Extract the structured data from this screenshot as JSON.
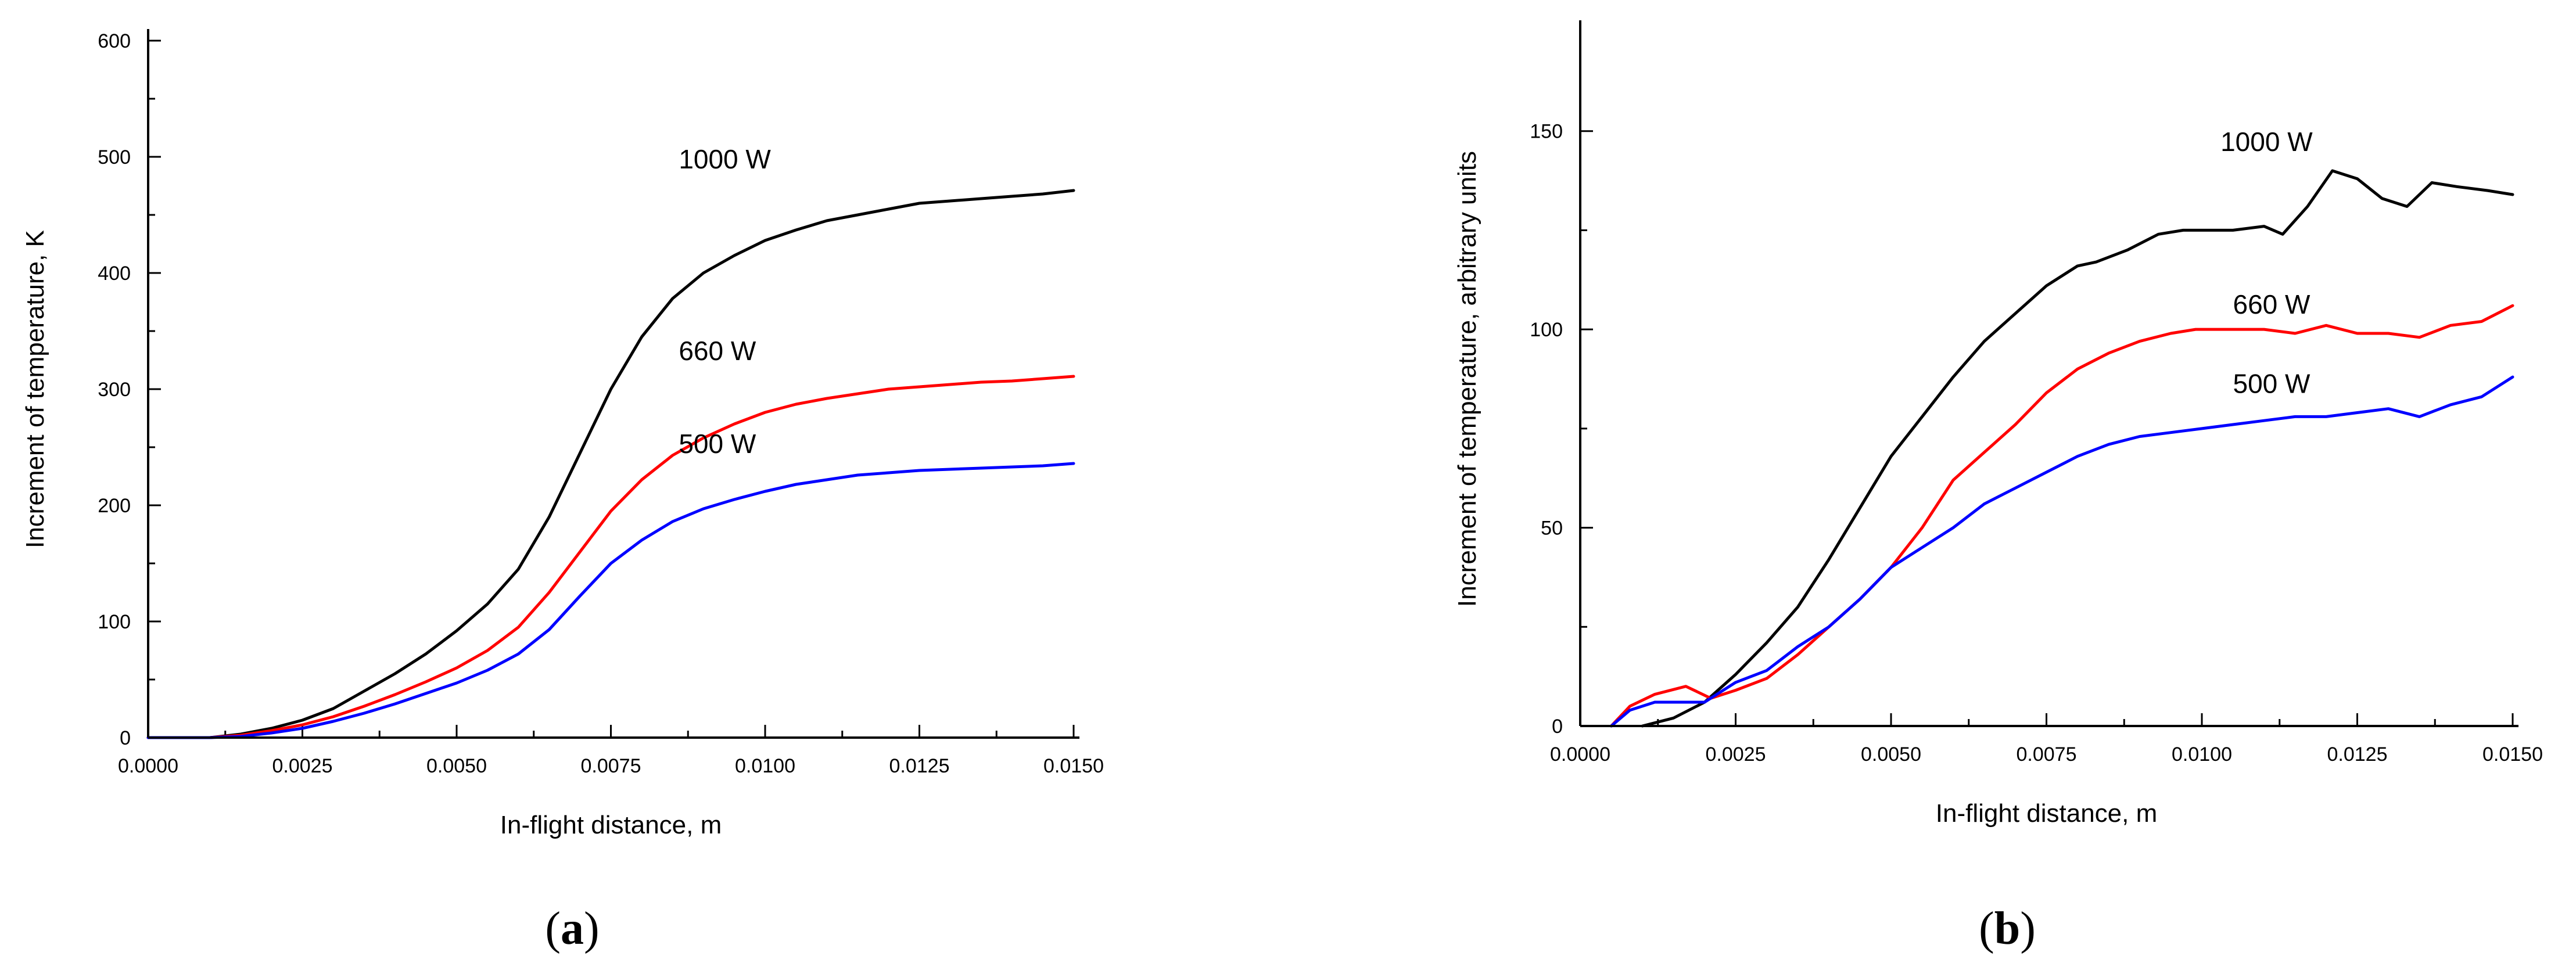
{
  "chart_data": [
    {
      "type": "line",
      "panel": "a",
      "caption_open": "(",
      "caption_letter": "a",
      "caption_close": ")",
      "xlabel": "In-flight distance, m",
      "ylabel": "Increment of temperature, K",
      "xlim": [
        0,
        0.015
      ],
      "ylim": [
        0,
        600
      ],
      "x_ticks": [
        0,
        0.0025,
        0.005,
        0.0075,
        0.01,
        0.0125,
        0.015
      ],
      "x_tick_labels": [
        "0.0000",
        "0.0025",
        "0.0050",
        "0.0075",
        "0.0100",
        "0.0125",
        "0.0150"
      ],
      "y_ticks": [
        0,
        100,
        200,
        300,
        400,
        500,
        600
      ],
      "y_tick_labels": [
        "0",
        "100",
        "200",
        "300",
        "400",
        "500",
        "600"
      ],
      "series": [
        {
          "name": "1000 W",
          "color": "#000000",
          "label_at": [
            0.0086,
            490
          ],
          "x": [
            0,
            0.001,
            0.0015,
            0.002,
            0.0025,
            0.003,
            0.0035,
            0.004,
            0.0045,
            0.005,
            0.0055,
            0.006,
            0.0065,
            0.007,
            0.0075,
            0.008,
            0.0085,
            0.009,
            0.0095,
            0.01,
            0.0105,
            0.011,
            0.0115,
            0.012,
            0.0125,
            0.013,
            0.0135,
            0.014,
            0.0145,
            0.015
          ],
          "y": [
            0,
            0,
            3,
            8,
            15,
            25,
            40,
            55,
            72,
            92,
            115,
            145,
            190,
            245,
            300,
            345,
            378,
            400,
            415,
            428,
            437,
            445,
            450,
            455,
            460,
            462,
            464,
            466,
            468,
            471
          ]
        },
        {
          "name": "660 W",
          "color": "#ff0000",
          "label_at": [
            0.0086,
            325
          ],
          "x": [
            0,
            0.001,
            0.0015,
            0.002,
            0.0025,
            0.003,
            0.0035,
            0.004,
            0.0045,
            0.005,
            0.0055,
            0.006,
            0.0065,
            0.007,
            0.0075,
            0.008,
            0.0085,
            0.009,
            0.0095,
            0.01,
            0.0105,
            0.011,
            0.0115,
            0.012,
            0.0125,
            0.013,
            0.0135,
            0.014,
            0.0145,
            0.015
          ],
          "y": [
            0,
            0,
            2,
            6,
            11,
            18,
            27,
            37,
            48,
            60,
            75,
            95,
            125,
            160,
            195,
            222,
            243,
            258,
            270,
            280,
            287,
            292,
            296,
            300,
            302,
            304,
            306,
            307,
            309,
            311
          ]
        },
        {
          "name": "500 W",
          "color": "#0000ff",
          "label_at": [
            0.0086,
            245
          ],
          "x": [
            0,
            0.001,
            0.0015,
            0.002,
            0.0025,
            0.003,
            0.0035,
            0.004,
            0.0045,
            0.005,
            0.0055,
            0.006,
            0.0065,
            0.007,
            0.0075,
            0.008,
            0.0085,
            0.009,
            0.0095,
            0.01,
            0.0105,
            0.011,
            0.0115,
            0.012,
            0.0125,
            0.013,
            0.0135,
            0.014,
            0.0145,
            0.015
          ],
          "y": [
            0,
            0,
            1,
            4,
            8,
            14,
            21,
            29,
            38,
            47,
            58,
            72,
            93,
            122,
            150,
            170,
            186,
            197,
            205,
            212,
            218,
            222,
            226,
            228,
            230,
            231,
            232,
            233,
            234,
            236
          ]
        }
      ]
    },
    {
      "type": "line",
      "panel": "b",
      "caption_open": "(",
      "caption_letter": "b",
      "caption_close": ")",
      "xlabel": "In-flight distance, m",
      "ylabel": "Increment of temperature, arbitrary units",
      "xlim": [
        0,
        0.015
      ],
      "ylim": [
        0,
        175
      ],
      "x_ticks": [
        0,
        0.0025,
        0.005,
        0.0075,
        0.01,
        0.0125,
        0.015
      ],
      "x_tick_labels": [
        "0.0000",
        "0.0025",
        "0.0050",
        "0.0075",
        "0.0100",
        "0.0125",
        "0.0150"
      ],
      "y_ticks": [
        0,
        50,
        100,
        150
      ],
      "y_tick_labels": [
        "0",
        "50",
        "100",
        "150"
      ],
      "series": [
        {
          "name": "1000 W",
          "color": "#000000",
          "label_at": [
            0.0103,
            145
          ],
          "x": [
            0.001,
            0.0015,
            0.002,
            0.0025,
            0.003,
            0.0035,
            0.004,
            0.0045,
            0.005,
            0.0055,
            0.006,
            0.0065,
            0.007,
            0.0075,
            0.008,
            0.0083,
            0.0088,
            0.0093,
            0.0097,
            0.01,
            0.0105,
            0.011,
            0.0113,
            0.0117,
            0.0121,
            0.0125,
            0.0129,
            0.0133,
            0.0137,
            0.0141,
            0.0146,
            0.015
          ],
          "y": [
            0,
            2,
            6,
            13,
            21,
            30,
            42,
            55,
            68,
            78,
            88,
            97,
            104,
            111,
            116,
            117,
            120,
            124,
            125,
            125,
            125,
            126,
            124,
            131,
            140,
            138,
            133,
            131,
            137,
            136,
            135,
            134
          ]
        },
        {
          "name": "660 W",
          "color": "#ff0000",
          "label_at": [
            0.0105,
            104
          ],
          "x": [
            0.0005,
            0.0008,
            0.0012,
            0.0017,
            0.0021,
            0.0025,
            0.003,
            0.0035,
            0.004,
            0.0045,
            0.005,
            0.0055,
            0.006,
            0.0065,
            0.007,
            0.0075,
            0.008,
            0.0085,
            0.009,
            0.0095,
            0.0099,
            0.0105,
            0.011,
            0.0115,
            0.012,
            0.0125,
            0.013,
            0.0135,
            0.014,
            0.0145,
            0.015
          ],
          "y": [
            0,
            5,
            8,
            10,
            7,
            9,
            12,
            18,
            25,
            32,
            40,
            50,
            62,
            69,
            76,
            84,
            90,
            94,
            97,
            99,
            100,
            100,
            100,
            99,
            101,
            99,
            99,
            98,
            101,
            102,
            106
          ]
        },
        {
          "name": "500 W",
          "color": "#0000ff",
          "label_at": [
            0.0105,
            84
          ],
          "x": [
            0.0005,
            0.0008,
            0.0012,
            0.0016,
            0.002,
            0.0025,
            0.003,
            0.0035,
            0.004,
            0.0045,
            0.005,
            0.0055,
            0.006,
            0.0065,
            0.007,
            0.0075,
            0.008,
            0.0085,
            0.009,
            0.0095,
            0.01,
            0.0105,
            0.011,
            0.0115,
            0.012,
            0.0125,
            0.013,
            0.0135,
            0.014,
            0.0145,
            0.015
          ],
          "y": [
            0,
            4,
            6,
            6,
            6,
            11,
            14,
            20,
            25,
            32,
            40,
            45,
            50,
            56,
            60,
            64,
            68,
            71,
            73,
            74,
            75,
            76,
            77,
            78,
            78,
            79,
            80,
            78,
            81,
            83,
            88
          ]
        }
      ]
    }
  ]
}
